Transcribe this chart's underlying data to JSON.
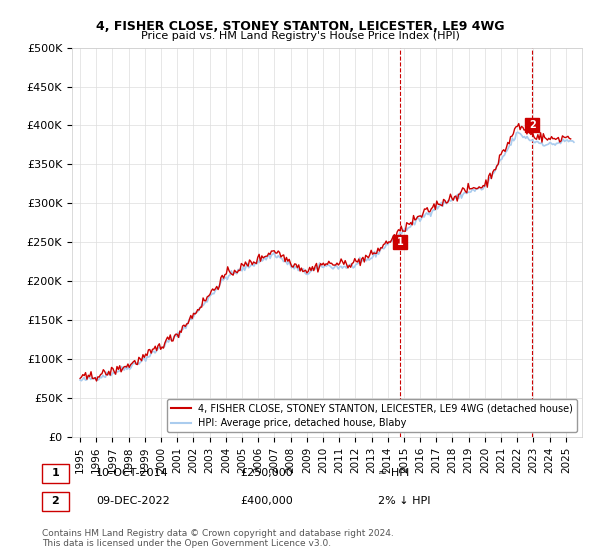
{
  "title": "4, FISHER CLOSE, STONEY STANTON, LEICESTER, LE9 4WG",
  "subtitle": "Price paid vs. HM Land Registry's House Price Index (HPI)",
  "ylim": [
    0,
    500000
  ],
  "yticks": [
    0,
    50000,
    100000,
    150000,
    200000,
    250000,
    300000,
    350000,
    400000,
    450000,
    500000
  ],
  "ytick_labels": [
    "£0",
    "£50K",
    "£100K",
    "£150K",
    "£200K",
    "£250K",
    "£300K",
    "£350K",
    "£400K",
    "£450K",
    "£500K"
  ],
  "xlim_start": 1994.5,
  "xlim_end": 2026.0,
  "xticks": [
    1995,
    1996,
    1997,
    1998,
    1999,
    2000,
    2001,
    2002,
    2003,
    2004,
    2005,
    2006,
    2007,
    2008,
    2009,
    2010,
    2011,
    2012,
    2013,
    2014,
    2015,
    2016,
    2017,
    2018,
    2019,
    2020,
    2021,
    2022,
    2023,
    2024,
    2025
  ],
  "house_color": "#cc0000",
  "hpi_color": "#aaccee",
  "sale1_x": 2014.78,
  "sale1_y": 250000,
  "sale1_label": "1",
  "sale2_x": 2022.94,
  "sale2_y": 400000,
  "sale2_label": "2",
  "vline_color": "#cc0000",
  "footer_text": "Contains HM Land Registry data © Crown copyright and database right 2024.\nThis data is licensed under the Open Government Licence v3.0.",
  "annotation1_date": "10-OCT-2014",
  "annotation1_price": "£250,000",
  "annotation1_hpi": "≈ HPI",
  "annotation2_date": "09-DEC-2022",
  "annotation2_price": "£400,000",
  "annotation2_hpi": "2% ↓ HPI",
  "background_color": "#ffffff",
  "grid_color": "#dddddd"
}
